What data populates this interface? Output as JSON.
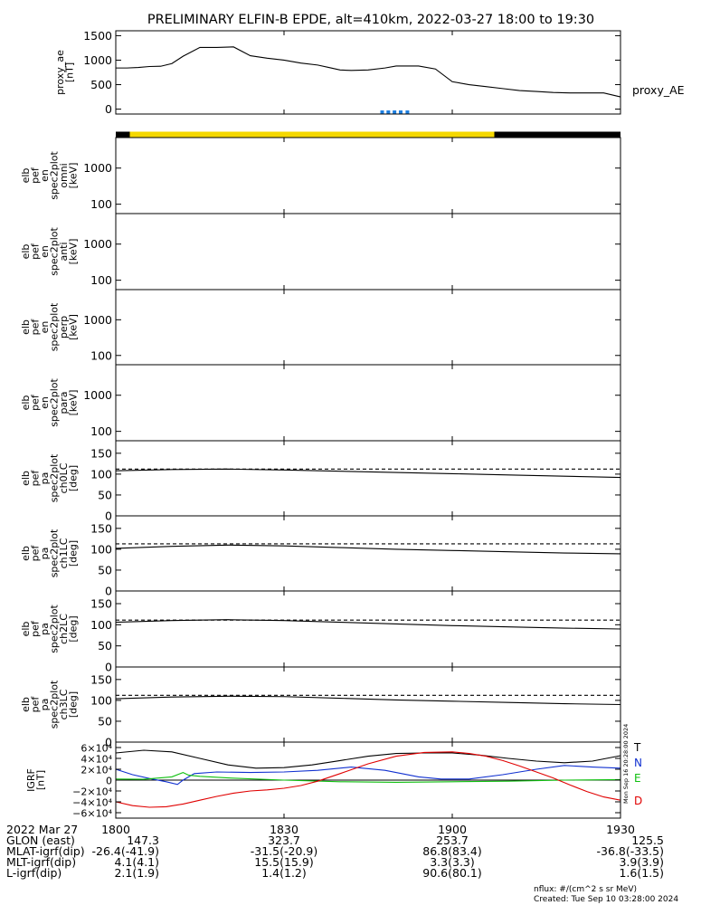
{
  "title": "PRELIMINARY ELFIN-B EPDE, alt=410km, 2022-03-27 18:00 to 19:30",
  "chart_data": [
    {
      "type": "line",
      "id": "proxy_ae",
      "ylabel": [
        "proxy_ae",
        "[nT]"
      ],
      "side_label": "proxy_AE",
      "ylim": [
        -100,
        1600
      ],
      "y_ticks": [
        "1500",
        "1000",
        "500",
        "0"
      ],
      "y_tick_values": [
        1500,
        1000,
        500,
        0
      ],
      "x": [
        0,
        2,
        4,
        6,
        8,
        10,
        12,
        15,
        18,
        21,
        24,
        27,
        30,
        33,
        36,
        38,
        40,
        42,
        45,
        48,
        50,
        52,
        54,
        57,
        60,
        63,
        66,
        69,
        72,
        75,
        78,
        81,
        84,
        87,
        90
      ],
      "y": [
        840,
        840,
        850,
        870,
        875,
        930,
        1080,
        1260,
        1260,
        1270,
        1090,
        1040,
        1000,
        940,
        900,
        850,
        800,
        790,
        800,
        840,
        880,
        880,
        880,
        820,
        560,
        500,
        460,
        420,
        380,
        360,
        340,
        330,
        330,
        330,
        250
      ],
      "orbit_bar": [
        {
          "from": 0,
          "to": 2.5,
          "color": "#000000"
        },
        {
          "from": 2.5,
          "to": 67.5,
          "color": "#f5d800"
        },
        {
          "from": 67.5,
          "to": 90,
          "color": "#000000"
        }
      ],
      "science_zone_marks": [
        47.5,
        48.6,
        49.7,
        50.8,
        52
      ],
      "science_zone_color": "#1e7fe0"
    },
    {
      "type": "heatmap",
      "id": "omni",
      "ylabel": [
        "elb",
        "pef",
        "en",
        "spec2plot",
        "omni",
        "[keV]"
      ],
      "y_ticks": [
        "1000",
        "100"
      ],
      "y_tick_values": [
        1000,
        100
      ],
      "ylog": true,
      "ylim": [
        55,
        7000
      ]
    },
    {
      "type": "heatmap",
      "id": "anti",
      "ylabel": [
        "elb",
        "pef",
        "en",
        "spec2plot",
        "anti",
        "[keV]"
      ],
      "y_ticks": [
        "1000",
        "100"
      ],
      "y_tick_values": [
        1000,
        100
      ],
      "ylog": true,
      "ylim": [
        55,
        7000
      ]
    },
    {
      "type": "heatmap",
      "id": "perp",
      "ylabel": [
        "elb",
        "pef",
        "en",
        "spec2plot",
        "perp",
        "[keV]"
      ],
      "y_ticks": [
        "1000",
        "100"
      ],
      "y_tick_values": [
        1000,
        100
      ],
      "ylog": true,
      "ylim": [
        55,
        7000
      ]
    },
    {
      "type": "heatmap",
      "id": "para",
      "ylabel": [
        "elb",
        "pef",
        "en",
        "spec2plot",
        "para",
        "[keV]"
      ],
      "y_ticks": [
        "1000",
        "100"
      ],
      "y_tick_values": [
        1000,
        100
      ],
      "ylog": true,
      "ylim": [
        55,
        7000
      ]
    },
    {
      "type": "line",
      "id": "ch0LC",
      "ylabel": [
        "elb",
        "pef",
        "pa",
        "spec2plot",
        "ch0LC",
        "[deg]"
      ],
      "y_ticks": [
        "150",
        "100",
        "50",
        "0"
      ],
      "y_tick_values": [
        150,
        100,
        50,
        0
      ],
      "ylim": [
        0,
        180
      ],
      "x": [
        0,
        10,
        20,
        30,
        40,
        50,
        60,
        70,
        80,
        90
      ],
      "solid": [
        108,
        111,
        112,
        110,
        107,
        104,
        101,
        98,
        95,
        92
      ],
      "dashed": [
        112,
        112,
        112,
        112,
        112,
        112,
        112,
        112,
        112,
        112
      ]
    },
    {
      "type": "line",
      "id": "ch1LC",
      "ylabel": [
        "elb",
        "pef",
        "pa",
        "spec2plot",
        "ch1LC",
        "[deg]"
      ],
      "y_ticks": [
        "150",
        "100",
        "50",
        "0"
      ],
      "y_tick_values": [
        150,
        100,
        50,
        0
      ],
      "ylim": [
        0,
        180
      ],
      "x": [
        0,
        10,
        20,
        30,
        40,
        50,
        60,
        70,
        80,
        90
      ],
      "solid": [
        102,
        107,
        110,
        108,
        104,
        100,
        97,
        94,
        91,
        89
      ],
      "dashed": [
        113,
        113,
        113,
        113,
        113,
        113,
        113,
        113,
        113,
        113
      ]
    },
    {
      "type": "line",
      "id": "ch2LC",
      "ylabel": [
        "elb",
        "pef",
        "pa",
        "spec2plot",
        "ch2LC",
        "[deg]"
      ],
      "y_ticks": [
        "150",
        "100",
        "50",
        "0"
      ],
      "y_tick_values": [
        150,
        100,
        50,
        0
      ],
      "ylim": [
        0,
        180
      ],
      "x": [
        0,
        10,
        20,
        30,
        40,
        50,
        60,
        70,
        80,
        90
      ],
      "solid": [
        106,
        110,
        112,
        110,
        106,
        102,
        98,
        95,
        92,
        90
      ],
      "dashed": [
        111,
        111,
        111,
        111,
        111,
        111,
        111,
        111,
        111,
        111
      ]
    },
    {
      "type": "line",
      "id": "ch3LC",
      "ylabel": [
        "elb",
        "pef",
        "pa",
        "spec2plot",
        "ch3LC",
        "[deg]"
      ],
      "y_ticks": [
        "150",
        "100",
        "50",
        "0"
      ],
      "y_tick_values": [
        150,
        100,
        50,
        0
      ],
      "ylim": [
        0,
        180
      ],
      "x": [
        0,
        10,
        20,
        30,
        40,
        50,
        60,
        70,
        80,
        90
      ],
      "solid": [
        104,
        108,
        110,
        109,
        105,
        101,
        98,
        95,
        92,
        90
      ],
      "dashed": [
        112,
        112,
        112,
        112,
        112,
        112,
        112,
        112,
        112,
        112
      ]
    },
    {
      "type": "line",
      "id": "igrf",
      "ylabel": [
        "IGRF",
        "[nT]"
      ],
      "ylim": [
        -70000,
        70000
      ],
      "y_ticks": [
        "6×10⁴",
        "4×10⁴",
        "2×10⁴",
        "0",
        "−2×10⁴",
        "−4×10⁴",
        "−6×10⁴"
      ],
      "y_tick_values": [
        60000,
        40000,
        20000,
        0,
        -20000,
        -40000,
        -60000
      ],
      "series": [
        {
          "name": "T",
          "color": "#000000",
          "x": [
            0,
            5,
            10,
            15,
            20,
            25,
            30,
            35,
            40,
            45,
            50,
            55,
            60,
            65,
            70,
            75,
            80,
            85,
            90
          ],
          "values": [
            50000,
            55000,
            52000,
            40000,
            28000,
            22000,
            23000,
            28000,
            36000,
            44000,
            49000,
            50000,
            50000,
            46000,
            40000,
            35000,
            32000,
            35000,
            45000
          ]
        },
        {
          "name": "N",
          "color": "#1030d0",
          "x": [
            0,
            3,
            6,
            9,
            11,
            12,
            14,
            18,
            24,
            30,
            36,
            42,
            48,
            54,
            58,
            63,
            69,
            75,
            80,
            85,
            90
          ],
          "values": [
            20000,
            10000,
            3000,
            -3000,
            -8000,
            0,
            12000,
            15000,
            14000,
            15000,
            18000,
            24000,
            18000,
            6000,
            2000,
            2000,
            10000,
            20000,
            27000,
            24000,
            22000
          ]
        },
        {
          "name": "E",
          "color": "#10c010",
          "x": [
            0,
            5,
            10,
            12,
            13,
            15,
            20,
            30,
            40,
            50,
            60,
            70,
            80,
            90
          ],
          "values": [
            2000,
            1500,
            6000,
            14000,
            9000,
            7000,
            4000,
            0,
            -3000,
            -4000,
            -3000,
            -2000,
            0,
            1000
          ]
        },
        {
          "name": "D",
          "color": "#e00000",
          "x": [
            0,
            3,
            6,
            9,
            12,
            15,
            18,
            21,
            24,
            27,
            30,
            33,
            36,
            40,
            45,
            50,
            55,
            60,
            63,
            66,
            69,
            72,
            75,
            78,
            81,
            84,
            87,
            90
          ],
          "values": [
            -40000,
            -47000,
            -50000,
            -49000,
            -44000,
            -37000,
            -30000,
            -24000,
            -20000,
            -18000,
            -15000,
            -10000,
            -2000,
            12000,
            30000,
            44000,
            51000,
            52000,
            49000,
            44000,
            36000,
            26000,
            15000,
            4000,
            -9000,
            -21000,
            -31000,
            -37000
          ]
        }
      ],
      "legend": [
        "T",
        "N",
        "E",
        "D"
      ]
    }
  ],
  "side_stamp": "Mon Sep 16 20:28:00 2024",
  "footer": {
    "rows": [
      {
        "label": "2022 Mar 27",
        "values": [
          "1800",
          "1830",
          "1900",
          "1930"
        ]
      },
      {
        "label": "GLON (east)",
        "values": [
          "147.3",
          "323.7",
          "253.7",
          "125.5"
        ]
      },
      {
        "label": "MLAT-igrf(dip)",
        "values": [
          "-26.4(-41.9)",
          "-31.5(-20.9)",
          "86.8(83.4)",
          "-36.8(-33.5)"
        ]
      },
      {
        "label": "MLT-igrf(dip)",
        "values": [
          "4.1(4.1)",
          "15.5(15.9)",
          "3.3(3.3)",
          "3.9(3.9)"
        ]
      },
      {
        "label": "L-igrf(dip)",
        "values": [
          "2.1(1.9)",
          "1.4(1.2)",
          "90.6(80.1)",
          "1.6(1.5)"
        ]
      }
    ],
    "nflux": "nflux: #/(cm^2 s sr MeV)",
    "created": "Created: Tue Sep 10 03:28:00 2024"
  }
}
